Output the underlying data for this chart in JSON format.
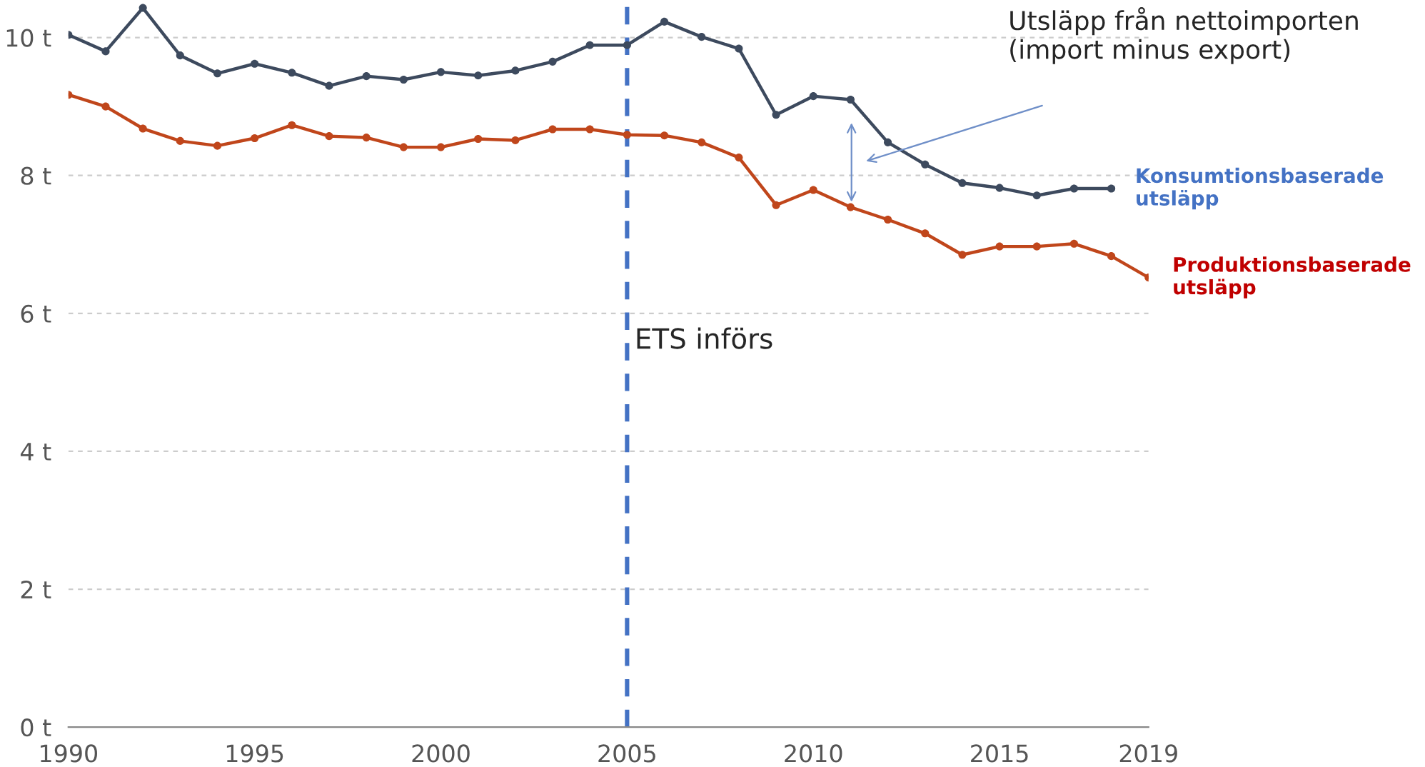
{
  "chart_data": {
    "type": "line",
    "x": [
      1990,
      1991,
      1992,
      1993,
      1994,
      1995,
      1996,
      1997,
      1998,
      1999,
      2000,
      2001,
      2002,
      2003,
      2004,
      2005,
      2006,
      2007,
      2008,
      2009,
      2010,
      2011,
      2012,
      2013,
      2014,
      2015,
      2016,
      2017,
      2018,
      2019
    ],
    "series": [
      {
        "name": "Konsumtionsbaserade utsläpp",
        "color": "#3d4a5e",
        "values": [
          10.04,
          9.8,
          10.43,
          9.74,
          9.48,
          9.62,
          9.49,
          9.3,
          9.44,
          9.39,
          9.5,
          9.45,
          9.52,
          9.65,
          9.89,
          9.89,
          10.23,
          10.01,
          9.84,
          8.88,
          9.15,
          9.1,
          8.48,
          8.16,
          7.89,
          7.82,
          7.71,
          7.81,
          7.81,
          null
        ]
      },
      {
        "name": "Produktionsbaserade utsläpp",
        "color": "#c0461b",
        "values": [
          9.17,
          9.0,
          8.68,
          8.5,
          8.43,
          8.54,
          8.73,
          8.57,
          8.55,
          8.41,
          8.41,
          8.53,
          8.51,
          8.67,
          8.67,
          8.59,
          8.58,
          8.48,
          8.26,
          7.57,
          7.79,
          7.54,
          7.36,
          7.16,
          6.85,
          6.97,
          6.97,
          7.01,
          6.83,
          6.52
        ]
      }
    ],
    "xlim": [
      1990,
      2019
    ],
    "xticks": [
      1990,
      1995,
      2000,
      2005,
      2010,
      2015,
      2019
    ],
    "ylim": [
      0,
      10.5
    ],
    "yticks": [
      {
        "value": 0,
        "label": "0 t"
      },
      {
        "value": 2,
        "label": "2 t"
      },
      {
        "value": 4,
        "label": "4 t"
      },
      {
        "value": 6,
        "label": "6 t"
      },
      {
        "value": 8,
        "label": "8 t"
      },
      {
        "value": 10,
        "label": "10 t"
      }
    ],
    "grid": "y",
    "marker": "circle",
    "line_style": "solid",
    "legend": false,
    "ref_lines": [
      {
        "axis": "x",
        "value": 2005,
        "label": "ETS införs",
        "color": "#4472c4",
        "line_style": "dashed"
      }
    ],
    "annotations": [
      "Utsläpp från nettoimporten\n(import minus export)"
    ]
  }
}
